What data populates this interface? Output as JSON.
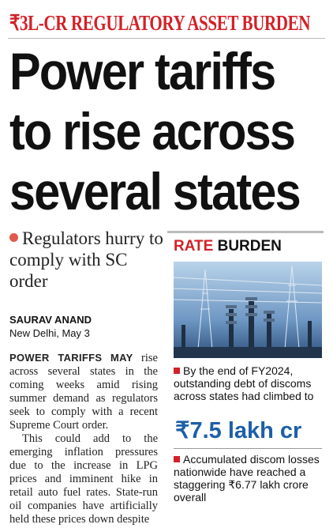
{
  "kicker": "₹3L-CR REGULATORY ASSET BURDEN",
  "headline": [
    "Power tariffs",
    "to rise across",
    "several states"
  ],
  "subhead": "Regulators hurry to comply with SC order",
  "byline": {
    "author": "SAURAV ANAND",
    "dateline": "New Delhi, May 3"
  },
  "body": {
    "lead": "POWER TARIFFS MAY",
    "paragraphs": [
      " rise across several states in the coming weeks amid rising summer demand as regulators seek to comply with a recent Supreme Court order.",
      "This could add to the emerging inflation pressures due to the increase in LPG prices and imminent hike in retail auto fuel rates. State-run oil companies have artificially held these prices down despite"
    ]
  },
  "sidebar": {
    "title_red": "RATE",
    "title_rest": " BURDEN",
    "bullets": [
      "By the end of FY2024, outstanding debt of discoms across states had climbed to",
      "Accumulated discom losses nationwide have reached a staggering ₹6.77 lakh crore overall"
    ],
    "highlight": "₹7.5 lakh cr"
  }
}
